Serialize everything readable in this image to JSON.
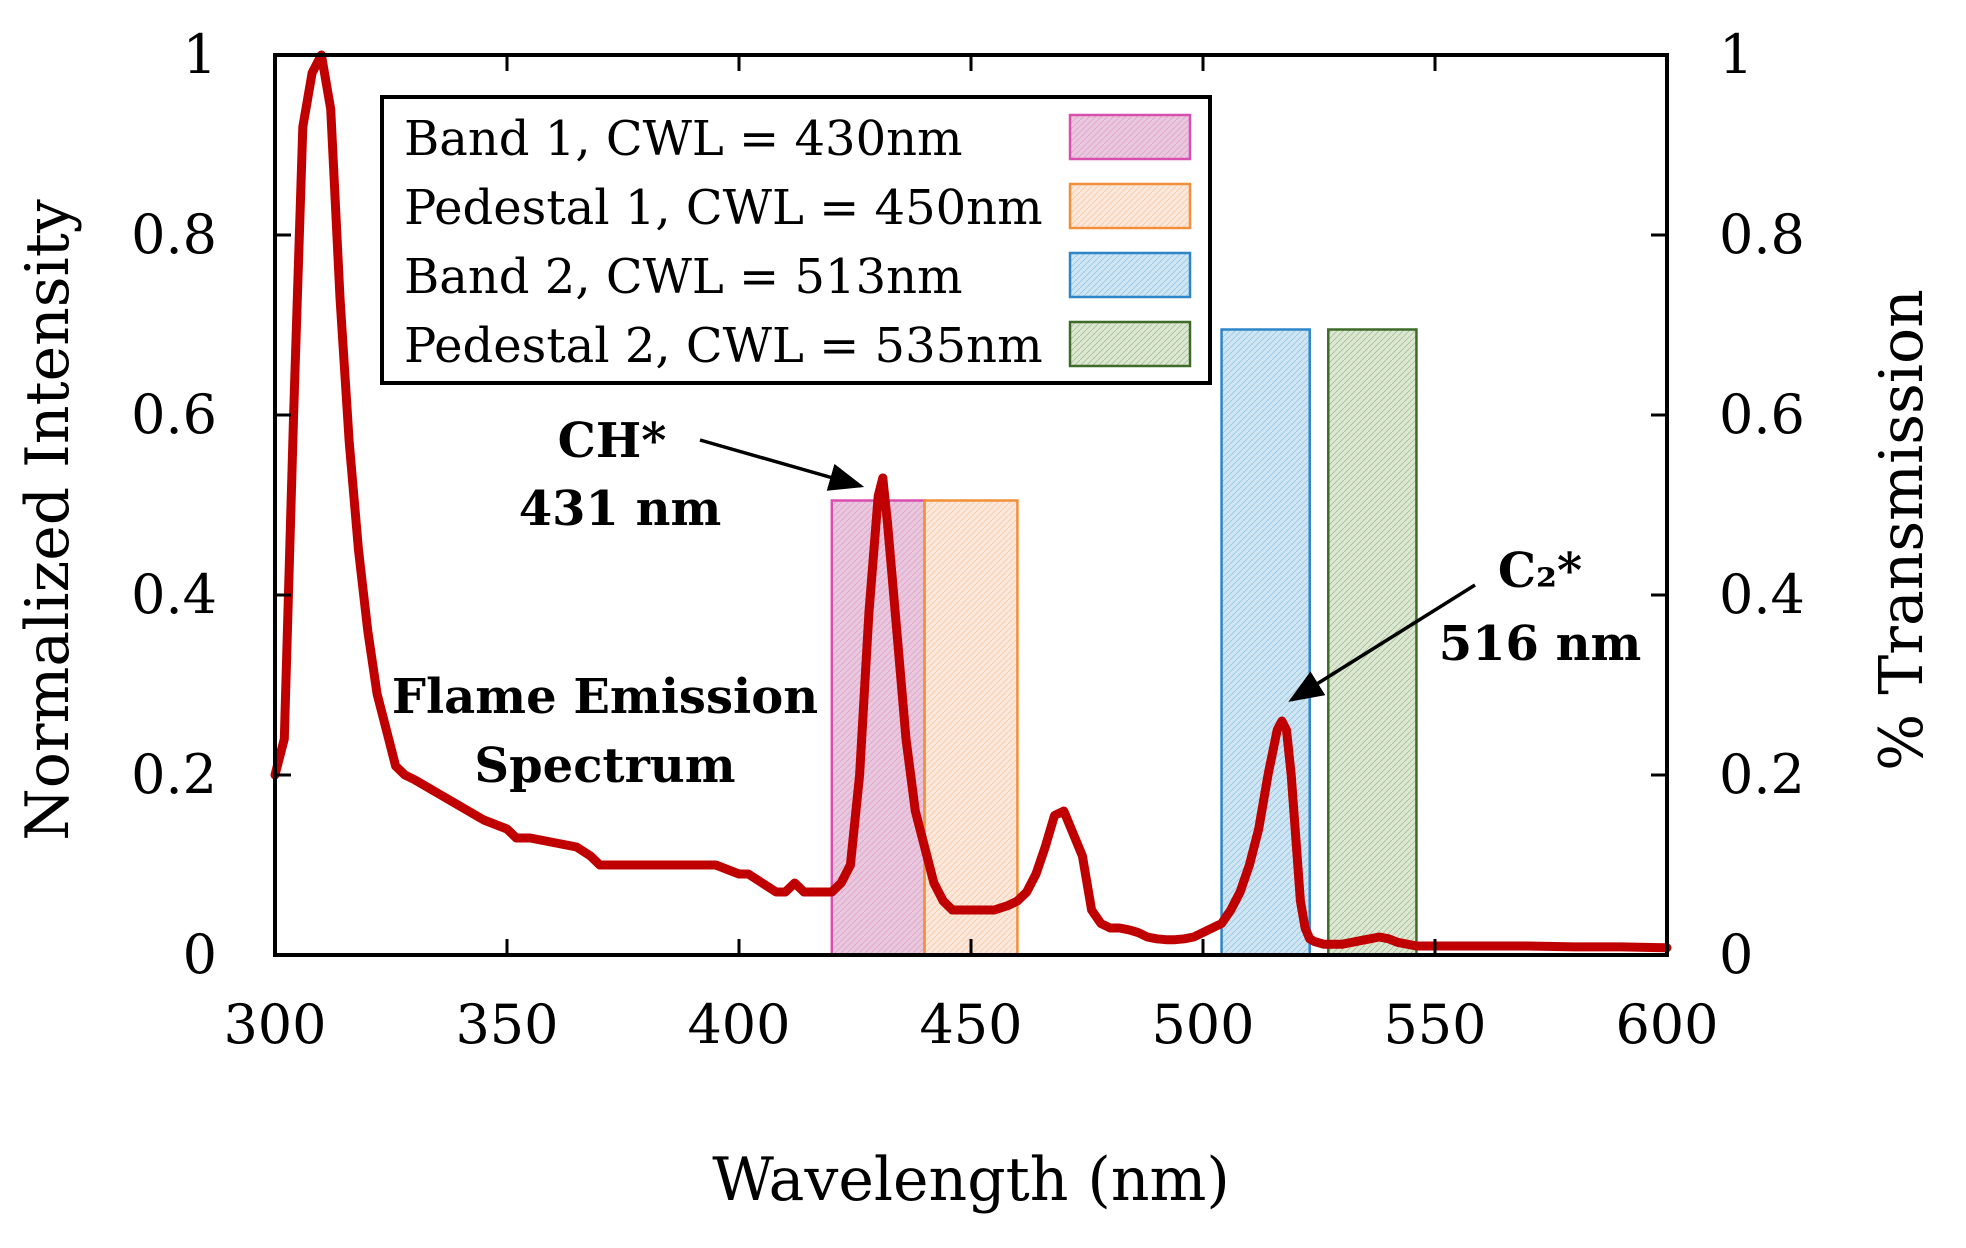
{
  "chart_data": {
    "type": "line",
    "xlabel": "Wavelength (nm)",
    "ylabel": "Normalized Intensity",
    "y2label": "% Transmission",
    "xlim": [
      300,
      600
    ],
    "ylim": [
      0,
      1
    ],
    "y2lim": [
      0,
      1
    ],
    "xticks": [
      300,
      350,
      400,
      450,
      500,
      550,
      600
    ],
    "yticks": [
      0,
      0.2,
      0.4,
      0.6,
      0.8,
      1
    ],
    "ytick_labels": [
      "0",
      "0.2",
      "0.4",
      "0.6",
      "0.8",
      "1"
    ],
    "y2tick_labels": [
      "0",
      "0.2",
      "0.4",
      "0.6",
      "0.8",
      "1"
    ],
    "grid": false,
    "legend_position": "top-left",
    "series": [
      {
        "name": "Flame Emission Spectrum",
        "color": "#c00000",
        "x": [
          300,
          302,
          304,
          306,
          308,
          310,
          312,
          314,
          316,
          318,
          320,
          322,
          324,
          326,
          328,
          330,
          335,
          340,
          345,
          350,
          352,
          355,
          360,
          365,
          368,
          370,
          375,
          380,
          385,
          390,
          395,
          400,
          402,
          405,
          408,
          410,
          412,
          414,
          416,
          418,
          420,
          422,
          424,
          426,
          428,
          430,
          431,
          432,
          434,
          436,
          438,
          440,
          442,
          444,
          446,
          448,
          450,
          455,
          458,
          460,
          462,
          464,
          466,
          468,
          470,
          472,
          474,
          476,
          478,
          480,
          482,
          484,
          486,
          488,
          490,
          492,
          494,
          496,
          498,
          500,
          502,
          504,
          506,
          508,
          510,
          512,
          514,
          516,
          517,
          518,
          519,
          520,
          521,
          522,
          523,
          524,
          526,
          528,
          530,
          532,
          534,
          536,
          538,
          540,
          542,
          544,
          546,
          550,
          560,
          570,
          580,
          590,
          600
        ],
        "values": [
          0.2,
          0.24,
          0.6,
          0.92,
          0.98,
          1.0,
          0.94,
          0.73,
          0.57,
          0.45,
          0.36,
          0.29,
          0.25,
          0.21,
          0.2,
          0.195,
          0.18,
          0.165,
          0.15,
          0.14,
          0.13,
          0.13,
          0.125,
          0.12,
          0.11,
          0.1,
          0.1,
          0.1,
          0.1,
          0.1,
          0.1,
          0.09,
          0.09,
          0.08,
          0.07,
          0.07,
          0.08,
          0.07,
          0.07,
          0.07,
          0.07,
          0.08,
          0.1,
          0.2,
          0.38,
          0.51,
          0.53,
          0.48,
          0.36,
          0.24,
          0.16,
          0.12,
          0.08,
          0.06,
          0.05,
          0.05,
          0.05,
          0.05,
          0.055,
          0.06,
          0.07,
          0.09,
          0.12,
          0.155,
          0.16,
          0.135,
          0.11,
          0.05,
          0.035,
          0.03,
          0.03,
          0.028,
          0.025,
          0.02,
          0.018,
          0.017,
          0.017,
          0.018,
          0.02,
          0.025,
          0.03,
          0.035,
          0.05,
          0.07,
          0.1,
          0.14,
          0.2,
          0.25,
          0.26,
          0.25,
          0.2,
          0.13,
          0.06,
          0.03,
          0.018,
          0.015,
          0.012,
          0.012,
          0.012,
          0.014,
          0.016,
          0.018,
          0.02,
          0.018,
          0.014,
          0.012,
          0.01,
          0.01,
          0.01,
          0.01,
          0.009,
          0.009,
          0.008
        ]
      }
    ],
    "bands": [
      {
        "name": "Band 1, CWL = 430nm",
        "x_start": 420,
        "x_end": 440,
        "transmission": 0.505,
        "color": "#d94fb0",
        "fill": "#e8c8dc"
      },
      {
        "name": "Pedestal 1, CWL = 450nm",
        "x_start": 440,
        "x_end": 460,
        "transmission": 0.505,
        "color": "#f0903a",
        "fill": "#fbe8dc"
      },
      {
        "name": "Band 2, CWL = 513nm",
        "x_start": 504,
        "x_end": 523,
        "transmission": 0.695,
        "color": "#2e86c8",
        "fill": "#cfe6f2"
      },
      {
        "name": "Pedestal 2, CWL = 535nm",
        "x_start": 527,
        "x_end": 546,
        "transmission": 0.695,
        "color": "#3f6b2a",
        "fill": "#dde8d2"
      }
    ],
    "annotations": [
      {
        "lines": [
          "CH*",
          "431 nm"
        ],
        "points_to_x": 431,
        "points_to_y": 0.53
      },
      {
        "lines": [
          "C₂*",
          "516 nm"
        ],
        "points_to_x": 516,
        "points_to_y": 0.27
      },
      {
        "lines": [
          "Flame Emission",
          "Spectrum"
        ]
      }
    ]
  }
}
